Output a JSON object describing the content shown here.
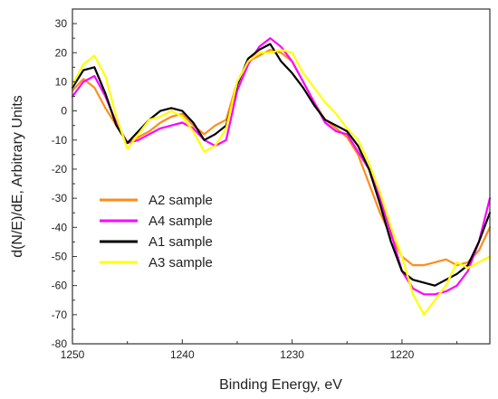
{
  "chart_data": {
    "type": "line",
    "title": "",
    "xlabel": "Binding Energy, eV",
    "ylabel": "d(N/E)/dE, Arbitrary Units",
    "xlim": [
      1250,
      1212
    ],
    "ylim": [
      -80,
      35
    ],
    "x_reversed": true,
    "x_ticks": [
      1250,
      1240,
      1230,
      1220
    ],
    "y_ticks": [
      -80,
      -70,
      -60,
      -50,
      -40,
      -30,
      -20,
      -10,
      0,
      10,
      20,
      30
    ],
    "grid": false,
    "legend_position": "lower-left",
    "series": [
      {
        "name": "A2 sample",
        "color": "#ff8c1a",
        "x": [
          1250,
          1249,
          1248,
          1247,
          1246,
          1245,
          1244,
          1243,
          1242,
          1241,
          1240,
          1239,
          1238,
          1237,
          1236,
          1235,
          1234,
          1233,
          1232,
          1231,
          1230,
          1229,
          1228,
          1227,
          1226,
          1225,
          1224,
          1223,
          1222,
          1221,
          1220,
          1219,
          1218,
          1217,
          1216,
          1215,
          1214,
          1213,
          1212
        ],
        "y": [
          7,
          11,
          8,
          1,
          -5,
          -11,
          -9,
          -7,
          -4,
          -2,
          -1,
          -5,
          -8,
          -5,
          -3,
          10,
          17,
          19,
          21,
          20,
          17,
          10,
          3,
          -3,
          -6,
          -9,
          -15,
          -25,
          -35,
          -43,
          -50,
          -53,
          -53,
          -52,
          -51,
          -53,
          -52,
          -48,
          -40
        ]
      },
      {
        "name": "A4 sample",
        "color": "#ff00ff",
        "x": [
          1250,
          1249,
          1248,
          1247,
          1246,
          1245,
          1244,
          1243,
          1242,
          1241,
          1240,
          1239,
          1238,
          1237,
          1236,
          1235,
          1234,
          1233,
          1232,
          1231,
          1230,
          1229,
          1228,
          1227,
          1226,
          1225,
          1224,
          1223,
          1222,
          1221,
          1220,
          1219,
          1218,
          1217,
          1216,
          1215,
          1214,
          1213,
          1212
        ],
        "y": [
          5,
          10,
          12,
          5,
          -4,
          -11,
          -10,
          -8,
          -6,
          -5,
          -4,
          -6,
          -10,
          -12,
          -10,
          7,
          16,
          22,
          25,
          22,
          17,
          10,
          3,
          -4,
          -7,
          -8,
          -14,
          -20,
          -30,
          -42,
          -55,
          -61,
          -63,
          -63,
          -62,
          -60,
          -55,
          -45,
          -30
        ]
      },
      {
        "name": "A1 sample",
        "color": "#000000",
        "x": [
          1250,
          1249,
          1248,
          1247,
          1246,
          1245,
          1244,
          1243,
          1242,
          1241,
          1240,
          1239,
          1238,
          1237,
          1236,
          1235,
          1234,
          1233,
          1232,
          1231,
          1230,
          1229,
          1228,
          1227,
          1226,
          1225,
          1224,
          1223,
          1222,
          1221,
          1220,
          1219,
          1218,
          1217,
          1216,
          1215,
          1214,
          1213,
          1212
        ],
        "y": [
          8,
          14,
          15,
          6,
          -5,
          -11,
          -7,
          -3,
          0,
          1,
          0,
          -4,
          -10,
          -8,
          -5,
          9,
          18,
          21,
          23,
          17,
          13,
          8,
          2,
          -3,
          -5,
          -7,
          -12,
          -20,
          -32,
          -45,
          -55,
          -58,
          -59,
          -60,
          -58,
          -56,
          -53,
          -45,
          -35
        ]
      },
      {
        "name": "A3 sample",
        "color": "#ffff00",
        "x": [
          1250,
          1249,
          1248,
          1247,
          1246,
          1245,
          1244,
          1243,
          1242,
          1241,
          1240,
          1239,
          1238,
          1237,
          1236,
          1235,
          1234,
          1233,
          1232,
          1231,
          1230,
          1229,
          1228,
          1227,
          1226,
          1225,
          1224,
          1223,
          1222,
          1221,
          1220,
          1219,
          1218,
          1217,
          1216,
          1215,
          1214,
          1213,
          1212
        ],
        "y": [
          9,
          16,
          19,
          12,
          -2,
          -13,
          -8,
          -3,
          -2,
          0,
          -2,
          -7,
          -14,
          -12,
          -6,
          10,
          17,
          20,
          20,
          21,
          20,
          13,
          8,
          3,
          -1,
          -6,
          -10,
          -18,
          -28,
          -40,
          -50,
          -63,
          -70,
          -65,
          -60,
          -52,
          -54,
          -52,
          -50
        ]
      }
    ]
  }
}
